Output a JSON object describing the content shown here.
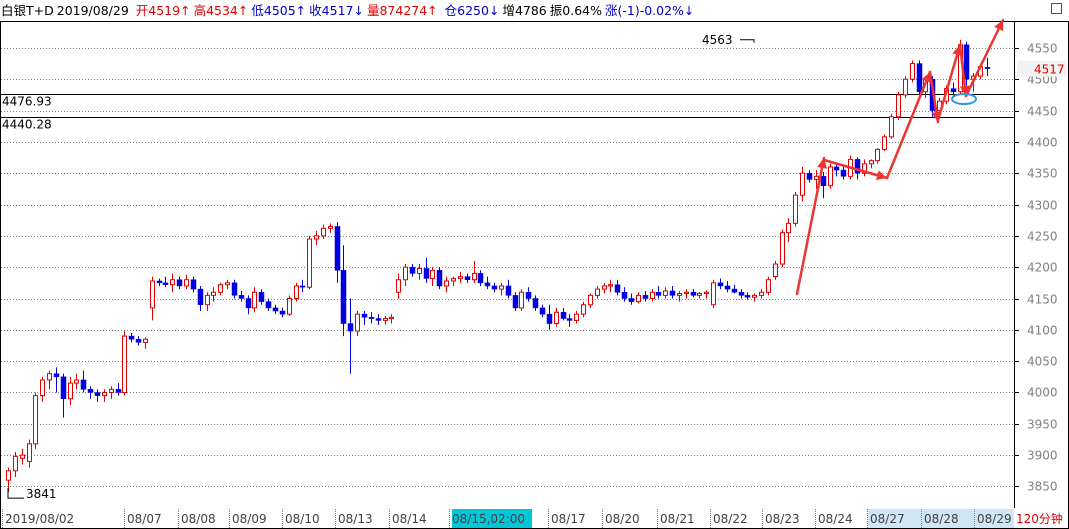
{
  "header": {
    "instrument": "白银T+D",
    "date": "2019/08/29",
    "open": "开4519↑",
    "high": "高4534↑",
    "low": "低4505↑",
    "close": "收4517↓",
    "volume": "量874274↑",
    "position": "仓6250↓",
    "increase": "增4786",
    "amplitude": "振0.64%",
    "change": "涨(-1)-0.02%↓"
  },
  "period_label": "120分钟",
  "cursor_time": "08/15,02:00",
  "current_price_label": "4517",
  "colors": {
    "up": "#e00000",
    "down": "#0000e0",
    "grid": "#808080",
    "arrow": "#ee3333",
    "highlight": "#3399dd",
    "cursor_bg": "#00c8d8",
    "recent_bg": "#cfe6f7"
  },
  "chart_data": {
    "type": "candlestick",
    "title": "",
    "ylim": [
      3828,
      4590
    ],
    "y_ticks": [
      3850,
      3900,
      3950,
      4000,
      4050,
      4100,
      4150,
      4200,
      4250,
      4300,
      4350,
      4400,
      4450,
      4500,
      4550
    ],
    "x_labels": [
      "2019/08/02",
      "08/07",
      "08/08",
      "08/09",
      "08/10",
      "08/13",
      "08/14",
      "08/15,02:00",
      "08/17",
      "08/20",
      "08/21",
      "08/22",
      "08/23",
      "08/24",
      "08/27",
      "08/28",
      "08/29"
    ],
    "horizontal_lines": [
      {
        "label": "4476.93",
        "value": 4476.93
      },
      {
        "label": "4440.28",
        "value": 4440.28
      }
    ],
    "annotations": [
      {
        "text": "4563",
        "value": 4563
      },
      {
        "text": "3841",
        "value": 3841
      }
    ],
    "candles": [
      [
        3860,
        3880,
        3841,
        3875
      ],
      [
        3875,
        3905,
        3865,
        3898
      ],
      [
        3895,
        3910,
        3885,
        3900
      ],
      [
        3890,
        3925,
        3880,
        3918
      ],
      [
        3918,
        4000,
        3910,
        3995
      ],
      [
        3995,
        4025,
        3985,
        4020
      ],
      [
        4020,
        4035,
        4005,
        4030
      ],
      [
        4030,
        4040,
        4000,
        4025
      ],
      [
        4025,
        4030,
        3960,
        3990
      ],
      [
        3990,
        4025,
        3980,
        4015
      ],
      [
        4015,
        4030,
        4005,
        4020
      ],
      [
        4020,
        4035,
        4000,
        4005
      ],
      [
        4005,
        4010,
        3990,
        4000
      ],
      [
        4000,
        4005,
        3985,
        3995
      ],
      [
        3995,
        4005,
        3985,
        4000
      ],
      [
        4000,
        4010,
        3990,
        4005
      ],
      [
        4005,
        4015,
        3995,
        4000
      ],
      [
        4000,
        4098,
        3995,
        4090
      ],
      [
        4090,
        4095,
        4080,
        4085
      ],
      [
        4085,
        4090,
        4075,
        4080
      ],
      [
        4080,
        4088,
        4070,
        4085
      ],
      [
        4135,
        4185,
        4115,
        4178
      ],
      [
        4178,
        4182,
        4170,
        4175
      ],
      [
        4175,
        4185,
        4168,
        4172
      ],
      [
        4172,
        4190,
        4160,
        4180
      ],
      [
        4180,
        4185,
        4165,
        4170
      ],
      [
        4170,
        4188,
        4165,
        4180
      ],
      [
        4180,
        4185,
        4160,
        4165
      ],
      [
        4165,
        4170,
        4130,
        4140
      ],
      [
        4140,
        4160,
        4130,
        4155
      ],
      [
        4155,
        4168,
        4145,
        4160
      ],
      [
        4160,
        4175,
        4155,
        4172
      ],
      [
        4172,
        4180,
        4165,
        4175
      ],
      [
        4175,
        4180,
        4150,
        4155
      ],
      [
        4155,
        4162,
        4145,
        4150
      ],
      [
        4150,
        4155,
        4125,
        4135
      ],
      [
        4135,
        4168,
        4128,
        4160
      ],
      [
        4160,
        4165,
        4140,
        4145
      ],
      [
        4145,
        4150,
        4130,
        4135
      ],
      [
        4135,
        4140,
        4125,
        4130
      ],
      [
        4130,
        4135,
        4120,
        4125
      ],
      [
        4125,
        4155,
        4122,
        4150
      ],
      [
        4150,
        4175,
        4145,
        4170
      ],
      [
        4170,
        4180,
        4160,
        4168
      ],
      [
        4168,
        4250,
        4165,
        4245
      ],
      [
        4245,
        4258,
        4235,
        4250
      ],
      [
        4250,
        4268,
        4245,
        4262
      ],
      [
        4262,
        4270,
        4255,
        4265
      ],
      [
        4265,
        4272,
        4175,
        4195
      ],
      [
        4195,
        4235,
        4090,
        4110
      ],
      [
        4110,
        4150,
        4030,
        4098
      ],
      [
        4098,
        4130,
        4090,
        4125
      ],
      [
        4125,
        4130,
        4108,
        4120
      ],
      [
        4120,
        4128,
        4110,
        4118
      ],
      [
        4118,
        4125,
        4108,
        4115
      ],
      [
        4115,
        4122,
        4108,
        4118
      ],
      [
        4118,
        4125,
        4110,
        4120
      ],
      [
        4160,
        4190,
        4150,
        4180
      ],
      [
        4180,
        4205,
        4170,
        4200
      ],
      [
        4200,
        4205,
        4185,
        4190
      ],
      [
        4190,
        4205,
        4180,
        4198
      ],
      [
        4198,
        4215,
        4175,
        4182
      ],
      [
        4182,
        4200,
        4170,
        4195
      ],
      [
        4195,
        4200,
        4165,
        4170
      ],
      [
        4170,
        4185,
        4160,
        4178
      ],
      [
        4178,
        4185,
        4170,
        4182
      ],
      [
        4182,
        4192,
        4175,
        4185
      ],
      [
        4185,
        4190,
        4175,
        4180
      ],
      [
        4180,
        4210,
        4175,
        4190
      ],
      [
        4190,
        4195,
        4170,
        4175
      ],
      [
        4175,
        4185,
        4165,
        4170
      ],
      [
        4170,
        4175,
        4160,
        4165
      ],
      [
        4165,
        4175,
        4155,
        4170
      ],
      [
        4170,
        4180,
        4150,
        4155
      ],
      [
        4155,
        4160,
        4130,
        4135
      ],
      [
        4135,
        4165,
        4130,
        4160
      ],
      [
        4160,
        4168,
        4145,
        4150
      ],
      [
        4150,
        4155,
        4130,
        4135
      ],
      [
        4135,
        4140,
        4120,
        4125
      ],
      [
        4125,
        4140,
        4100,
        4110
      ],
      [
        4110,
        4135,
        4105,
        4128
      ],
      [
        4128,
        4135,
        4115,
        4118
      ],
      [
        4118,
        4125,
        4105,
        4115
      ],
      [
        4115,
        4130,
        4110,
        4125
      ],
      [
        4125,
        4145,
        4120,
        4140
      ],
      [
        4140,
        4158,
        4135,
        4155
      ],
      [
        4155,
        4170,
        4150,
        4165
      ],
      [
        4165,
        4175,
        4158,
        4170
      ],
      [
        4170,
        4180,
        4160,
        4172
      ],
      [
        4172,
        4180,
        4155,
        4160
      ],
      [
        4160,
        4168,
        4145,
        4150
      ],
      [
        4150,
        4158,
        4140,
        4145
      ],
      [
        4145,
        4160,
        4142,
        4155
      ],
      [
        4155,
        4162,
        4145,
        4150
      ],
      [
        4150,
        4165,
        4145,
        4160
      ],
      [
        4160,
        4170,
        4150,
        4155
      ],
      [
        4155,
        4168,
        4150,
        4162
      ],
      [
        4162,
        4170,
        4150,
        4155
      ],
      [
        4155,
        4162,
        4145,
        4158
      ],
      [
        4158,
        4165,
        4150,
        4160
      ],
      [
        4160,
        4165,
        4152,
        4155
      ],
      [
        4155,
        4160,
        4150,
        4158
      ],
      [
        4158,
        4163,
        4150,
        4160
      ],
      [
        4140,
        4180,
        4135,
        4175
      ],
      [
        4175,
        4182,
        4165,
        4170
      ],
      [
        4170,
        4178,
        4160,
        4165
      ],
      [
        4165,
        4172,
        4158,
        4160
      ],
      [
        4160,
        4165,
        4150,
        4155
      ],
      [
        4155,
        4160,
        4148,
        4152
      ],
      [
        4152,
        4158,
        4145,
        4155
      ],
      [
        4155,
        4165,
        4150,
        4160
      ],
      [
        4160,
        4185,
        4155,
        4180
      ],
      [
        4185,
        4210,
        4180,
        4205
      ],
      [
        4205,
        4260,
        4200,
        4255
      ],
      [
        4255,
        4278,
        4240,
        4270
      ],
      [
        4270,
        4320,
        4265,
        4315
      ],
      [
        4315,
        4360,
        4305,
        4350
      ],
      [
        4350,
        4355,
        4335,
        4340
      ],
      [
        4340,
        4355,
        4325,
        4345
      ],
      [
        4345,
        4352,
        4310,
        4330
      ],
      [
        4330,
        4365,
        4325,
        4360
      ],
      [
        4360,
        4365,
        4345,
        4355
      ],
      [
        4355,
        4360,
        4340,
        4345
      ],
      [
        4345,
        4378,
        4340,
        4372
      ],
      [
        4372,
        4375,
        4340,
        4350
      ],
      [
        4350,
        4372,
        4345,
        4365
      ],
      [
        4365,
        4372,
        4358,
        4370
      ],
      [
        4370,
        4390,
        4365,
        4388
      ],
      [
        4388,
        4412,
        4385,
        4408
      ],
      [
        4408,
        4445,
        4405,
        4440
      ],
      [
        4440,
        4480,
        4435,
        4475
      ],
      [
        4475,
        4505,
        4470,
        4500
      ],
      [
        4500,
        4530,
        4495,
        4525
      ],
      [
        4525,
        4530,
        4475,
        4480
      ],
      [
        4480,
        4505,
        4470,
        4500
      ],
      [
        4500,
        4505,
        4440,
        4450
      ],
      [
        4450,
        4470,
        4445,
        4465
      ],
      [
        4465,
        4490,
        4460,
        4485
      ],
      [
        4485,
        4495,
        4470,
        4480
      ],
      [
        4480,
        4563,
        4475,
        4555
      ],
      [
        4555,
        4560,
        4490,
        4500
      ],
      [
        4500,
        4510,
        4480,
        4505
      ],
      [
        4505,
        4525,
        4500,
        4520
      ],
      [
        4519,
        4534,
        4505,
        4517
      ]
    ]
  }
}
